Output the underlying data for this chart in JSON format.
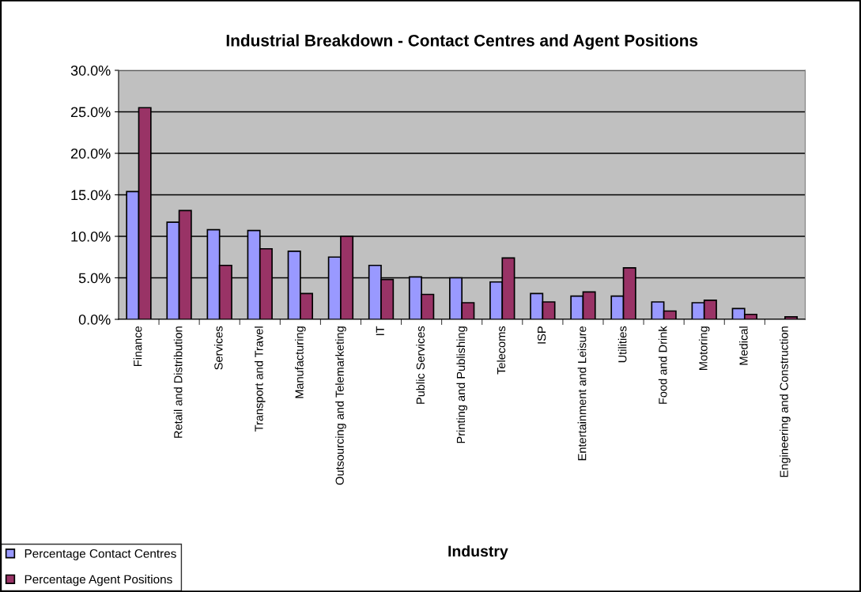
{
  "chart_data": {
    "type": "bar",
    "title": "Industrial Breakdown - Contact Centres and Agent Positions",
    "xlabel": "Industry",
    "categories": [
      "Finance",
      "Retail and Distribution",
      "Services",
      "Transport and Travel",
      "Manufacturing",
      "Outsourcing and Telemarketing",
      "IT",
      "Public Services",
      "Printing and Publishing",
      "Telecoms",
      "ISP",
      "Entertainment and Leisure",
      "Utilities",
      "Food and Drink",
      "Motoring",
      "Medical",
      "Engineering and Construction"
    ],
    "series": [
      {
        "name": "Percentage Contact Centres",
        "color": "#9999ff",
        "values": [
          15.4,
          11.7,
          10.8,
          10.7,
          8.2,
          7.5,
          6.5,
          5.1,
          5.0,
          4.5,
          3.1,
          2.8,
          2.8,
          2.1,
          2.0,
          1.3,
          null
        ]
      },
      {
        "name": "Percentage Agent Positions",
        "color": "#993366",
        "values": [
          25.5,
          13.1,
          6.5,
          8.5,
          3.1,
          10.0,
          4.8,
          3.0,
          2.0,
          7.4,
          2.1,
          3.3,
          6.2,
          1.0,
          2.3,
          0.6,
          0.3
        ]
      }
    ],
    "ylim": [
      0,
      30
    ],
    "yticks": [
      {
        "value": 0,
        "label": "0.0%"
      },
      {
        "value": 5,
        "label": "5.0%"
      },
      {
        "value": 10,
        "label": "10.0%"
      },
      {
        "value": 15,
        "label": "15.0%"
      },
      {
        "value": 20,
        "label": "20.0%"
      },
      {
        "value": 25,
        "label": "25.0%"
      },
      {
        "value": 30,
        "label": "30.0%"
      }
    ],
    "grid": "y",
    "legend": "bottom left"
  }
}
